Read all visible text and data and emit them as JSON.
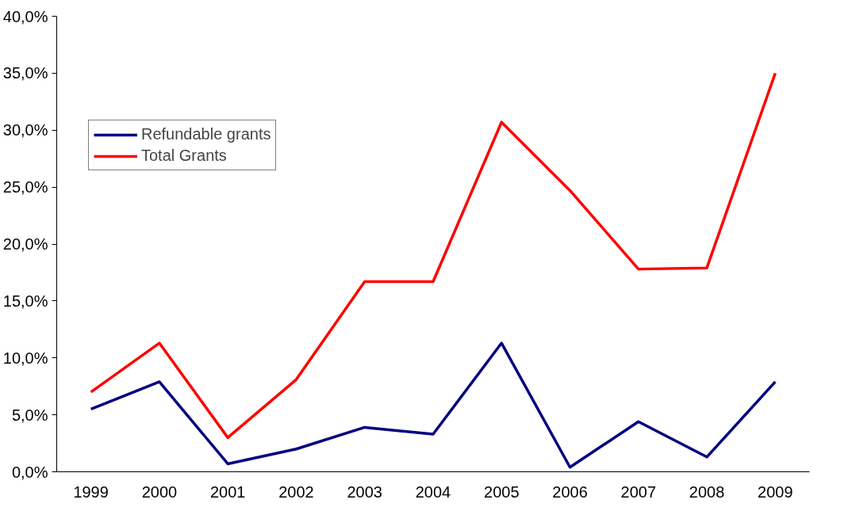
{
  "chart_data": {
    "type": "line",
    "categories": [
      "1999",
      "2000",
      "2001",
      "2002",
      "2003",
      "2004",
      "2005",
      "2006",
      "2007",
      "2008",
      "2009"
    ],
    "series": [
      {
        "name": "Refundable grants",
        "color": "#000080",
        "values": [
          5.5,
          7.9,
          0.7,
          2.0,
          3.9,
          3.3,
          11.3,
          0.4,
          4.4,
          1.3,
          7.9
        ]
      },
      {
        "name": "Total Grants",
        "color": "#ff0000",
        "values": [
          7.0,
          11.3,
          3.0,
          8.1,
          16.7,
          16.7,
          30.7,
          24.7,
          17.8,
          17.9,
          35.0
        ]
      }
    ],
    "ylim": [
      0,
      40
    ],
    "yticks": [
      {
        "value": 0,
        "label": "0,0%"
      },
      {
        "value": 5,
        "label": "5,0%"
      },
      {
        "value": 10,
        "label": "10,0%"
      },
      {
        "value": 15,
        "label": "15,0%"
      },
      {
        "value": 20,
        "label": "20,0%"
      },
      {
        "value": 25,
        "label": "25,0%"
      },
      {
        "value": 30,
        "label": "30,0%"
      },
      {
        "value": 35,
        "label": "35,0%"
      },
      {
        "value": 40,
        "label": "40,0%"
      }
    ],
    "grid": false,
    "legend": "top left",
    "marker": "none",
    "line_style": "solid"
  }
}
